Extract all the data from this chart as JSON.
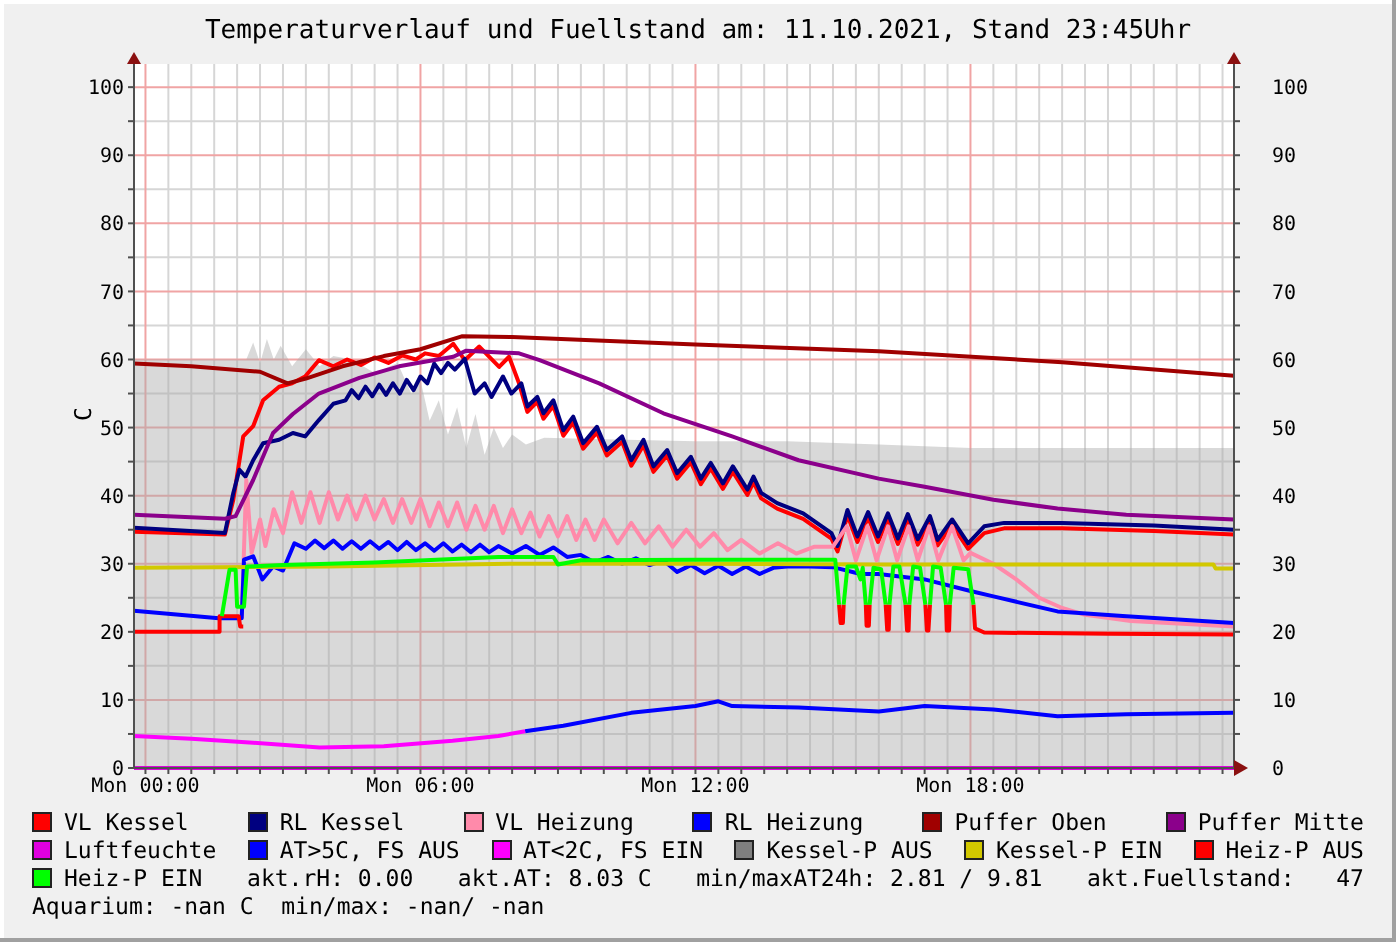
{
  "chart_data": {
    "type": "line",
    "title": "Temperaturverlauf und Fuellstand am: 11.10.2021, Stand 23:45Uhr",
    "ylabel": "C",
    "xlim": [
      "2021-10-10T23:45",
      "2021-10-11T23:45"
    ],
    "xticks": [
      {
        "value": "2021-10-11T00:00",
        "label": "Mon 00:00"
      },
      {
        "value": "2021-10-11T00:30",
        "label": null
      },
      {
        "value": "2021-10-11T01:00",
        "label": null
      },
      {
        "value": "2021-10-11T01:30",
        "label": null
      },
      {
        "value": "2021-10-11T02:00",
        "label": null
      },
      {
        "value": "2021-10-11T02:30",
        "label": null
      },
      {
        "value": "2021-10-11T03:00",
        "label": null
      },
      {
        "value": "2021-10-11T03:30",
        "label": null
      },
      {
        "value": "2021-10-11T04:00",
        "label": null
      },
      {
        "value": "2021-10-11T04:30",
        "label": null
      },
      {
        "value": "2021-10-11T05:00",
        "label": null
      },
      {
        "value": "2021-10-11T05:30",
        "label": null
      },
      {
        "value": "2021-10-11T06:00",
        "label": "Mon 06:00"
      },
      {
        "value": "2021-10-11T06:30",
        "label": null
      },
      {
        "value": "2021-10-11T07:00",
        "label": null
      },
      {
        "value": "2021-10-11T07:30",
        "label": null
      },
      {
        "value": "2021-10-11T08:00",
        "label": null
      },
      {
        "value": "2021-10-11T08:30",
        "label": null
      },
      {
        "value": "2021-10-11T09:00",
        "label": null
      },
      {
        "value": "2021-10-11T09:30",
        "label": null
      },
      {
        "value": "2021-10-11T10:00",
        "label": null
      },
      {
        "value": "2021-10-11T10:30",
        "label": null
      },
      {
        "value": "2021-10-11T11:00",
        "label": null
      },
      {
        "value": "2021-10-11T11:30",
        "label": null
      },
      {
        "value": "2021-10-11T12:00",
        "label": "Mon 12:00"
      },
      {
        "value": "2021-10-11T12:30",
        "label": null
      },
      {
        "value": "2021-10-11T13:00",
        "label": null
      },
      {
        "value": "2021-10-11T13:30",
        "label": null
      },
      {
        "value": "2021-10-11T14:00",
        "label": null
      },
      {
        "value": "2021-10-11T14:30",
        "label": null
      },
      {
        "value": "2021-10-11T15:00",
        "label": null
      },
      {
        "value": "2021-10-11T15:30",
        "label": null
      },
      {
        "value": "2021-10-11T16:00",
        "label": null
      },
      {
        "value": "2021-10-11T16:30",
        "label": null
      },
      {
        "value": "2021-10-11T17:00",
        "label": null
      },
      {
        "value": "2021-10-11T17:30",
        "label": null
      },
      {
        "value": "2021-10-11T18:00",
        "label": "Mon 18:00"
      },
      {
        "value": "2021-10-11T18:30",
        "label": null
      },
      {
        "value": "2021-10-11T19:00",
        "label": null
      },
      {
        "value": "2021-10-11T19:30",
        "label": null
      },
      {
        "value": "2021-10-11T20:00",
        "label": null
      },
      {
        "value": "2021-10-11T20:30",
        "label": null
      },
      {
        "value": "2021-10-11T21:00",
        "label": null
      },
      {
        "value": "2021-10-11T21:30",
        "label": null
      },
      {
        "value": "2021-10-11T22:00",
        "label": null
      },
      {
        "value": "2021-10-11T22:30",
        "label": null
      },
      {
        "value": "2021-10-11T23:00",
        "label": null
      },
      {
        "value": "2021-10-11T23:30",
        "label": null
      }
    ],
    "ylim": [
      0,
      103.4
    ],
    "yticks": [
      0,
      {
        "value": 5,
        "label": null
      },
      10,
      {
        "value": 15,
        "label": null
      },
      20,
      {
        "value": 25,
        "label": null
      },
      30,
      {
        "value": 35,
        "label": null
      },
      40,
      {
        "value": 45,
        "label": null
      },
      50,
      {
        "value": 55,
        "label": null
      },
      60,
      {
        "value": 65,
        "label": null
      },
      70,
      {
        "value": 75,
        "label": null
      },
      80,
      {
        "value": 85,
        "label": null
      },
      90,
      {
        "value": 95,
        "label": null
      },
      100
    ],
    "y2lim": [
      0,
      103.4
    ],
    "y2ticks": [
      0,
      {
        "value": 5,
        "label": null
      },
      10,
      {
        "value": 15,
        "label": null
      },
      20,
      {
        "value": 25,
        "label": null
      },
      30,
      {
        "value": 35,
        "label": null
      },
      40,
      {
        "value": 45,
        "label": null
      },
      50,
      {
        "value": 55,
        "label": null
      },
      60,
      {
        "value": 65,
        "label": null
      },
      70,
      {
        "value": 75,
        "label": null
      },
      80,
      {
        "value": 85,
        "label": null
      },
      90,
      {
        "value": 95,
        "label": null
      },
      100
    ],
    "grid": true,
    "legend": "bottom",
    "annotations": [
      "akt.rH: 0.00",
      "akt.AT: 8.03 C",
      "min/maxAT24h: 2.81 / 9.81",
      "akt.Fuellstand:   47",
      "Aquarium: -nan C  min/max: -nan/ -nan"
    ],
    "x": [
      "2021-10-10T23:45",
      "2021-10-11T01:37",
      "2021-10-11T01:37",
      "2021-10-11T01:40",
      "2021-10-11T01:50",
      "2021-10-11T01:58",
      "2021-10-11T02:00",
      "2021-10-11T02:02",
      "2021-10-11T02:04",
      "2021-10-11T02:08",
      "2021-10-11T02:09",
      "2021-10-11T02:13",
      "2021-10-11T03:00",
      "2021-10-11T05:00",
      "2021-10-11T07:42",
      "2021-10-11T08:54",
      "2021-10-11T09:00",
      "2021-10-11T09:30",
      "2021-10-11T12:00",
      "2021-10-11T15:03",
      "2021-10-11T15:08",
      "2021-10-11T15:10",
      "2021-10-11T15:13",
      "2021-10-11T15:14",
      "2021-10-11T15:19",
      "2021-10-11T15:30",
      "2021-10-11T15:36",
      "2021-10-11T15:39",
      "2021-10-11T15:43",
      "2021-10-11T15:44",
      "2021-10-11T15:47",
      "2021-10-11T15:48",
      "2021-10-11T15:53",
      "2021-10-11T16:03",
      "2021-10-11T16:09",
      "2021-10-11T16:11",
      "2021-10-11T16:13",
      "2021-10-11T16:14",
      "2021-10-11T16:19",
      "2021-10-11T16:27",
      "2021-10-11T16:35",
      "2021-10-11T16:37",
      "2021-10-11T16:39",
      "2021-10-11T16:40",
      "2021-10-11T16:45",
      "2021-10-11T16:54",
      "2021-10-11T17:01",
      "2021-10-11T17:03",
      "2021-10-11T17:05",
      "2021-10-11T17:07",
      "2021-10-11T17:11",
      "2021-10-11T17:21",
      "2021-10-11T17:28",
      "2021-10-11T17:29",
      "2021-10-11T17:32",
      "2021-10-11T17:33",
      "2021-10-11T17:38",
      "2021-10-11T17:57",
      "2021-10-11T18:04",
      "2021-10-11T18:06",
      "2021-10-11T18:18",
      "2021-10-11T21:00",
      "2021-10-11T23:45"
    ],
    "series": [
      {
        "type": "area",
        "color": "#d9d9d9",
        "x": [
          "2021-10-10T23:45",
          "2021-10-11T02:12",
          "2021-10-11T02:21",
          "2021-10-11T02:30",
          "2021-10-11T02:39",
          "2021-10-11T02:48",
          "2021-10-11T02:57",
          "2021-10-11T03:12",
          "2021-10-11T03:30",
          "2021-10-11T03:48",
          "2021-10-11T04:06",
          "2021-10-11T04:30",
          "2021-10-11T05:00",
          "2021-10-11T05:30",
          "2021-10-11T05:48",
          "2021-10-11T06:00",
          "2021-10-11T06:12",
          "2021-10-11T06:24",
          "2021-10-11T06:36",
          "2021-10-11T06:48",
          "2021-10-11T07:00",
          "2021-10-11T07:12",
          "2021-10-11T07:24",
          "2021-10-11T07:36",
          "2021-10-11T07:48",
          "2021-10-11T08:00",
          "2021-10-11T08:18",
          "2021-10-11T08:42",
          "2021-10-11T10:00",
          "2021-10-11T12:00",
          "2021-10-11T14:00",
          "2021-10-11T16:00",
          "2021-10-11T18:00",
          "2021-10-11T20:00",
          "2021-10-11T22:00",
          "2021-10-11T23:45"
        ],
        "values": [
          60,
          60,
          62.5,
          59.5,
          63,
          60,
          62,
          59,
          61.5,
          59,
          60.5,
          60,
          58,
          59.5,
          55,
          57,
          51,
          54,
          49,
          53,
          47,
          52,
          46,
          50,
          47,
          49,
          47.5,
          48.5,
          48.3,
          48,
          48,
          47.5,
          47,
          47,
          47,
          47
        ]
      },
      {
        "name": "VL Kessel",
        "color": "#ff0000",
        "x": [
          "2021-10-10T23:45",
          "2021-10-11T01:44",
          "2021-10-11T01:55",
          "2021-10-11T02:08",
          "2021-10-11T02:21",
          "2021-10-11T02:34",
          "2021-10-11T02:55",
          "2021-10-11T03:12",
          "2021-10-11T03:29",
          "2021-10-11T03:47",
          "2021-10-11T04:06",
          "2021-10-11T04:24",
          "2021-10-11T04:42",
          "2021-10-11T05:00",
          "2021-10-11T05:18",
          "2021-10-11T05:36",
          "2021-10-11T05:54",
          "2021-10-11T06:06",
          "2021-10-11T06:24",
          "2021-10-11T06:43",
          "2021-10-11T06:58",
          "2021-10-11T07:17",
          "2021-10-11T07:43",
          "2021-10-11T07:56",
          "2021-10-11T08:09",
          "2021-10-11T08:20",
          "2021-10-11T08:33",
          "2021-10-11T08:41",
          "2021-10-11T08:54",
          "2021-10-11T09:07",
          "2021-10-11T09:20",
          "2021-10-11T09:33",
          "2021-10-11T09:51",
          "2021-10-11T10:04",
          "2021-10-11T10:24",
          "2021-10-11T10:36",
          "2021-10-11T10:52",
          "2021-10-11T11:05",
          "2021-10-11T11:23",
          "2021-10-11T11:36",
          "2021-10-11T11:54",
          "2021-10-11T12:07",
          "2021-10-11T12:20",
          "2021-10-11T12:36",
          "2021-10-11T12:49",
          "2021-10-11T13:08",
          "2021-10-11T13:16",
          "2021-10-11T13:26",
          "2021-10-11T13:47",
          "2021-10-11T14:21",
          "2021-10-11T14:58",
          "2021-10-11T15:06",
          "2021-10-11T15:19",
          "2021-10-11T15:32",
          "2021-10-11T15:46",
          "2021-10-11T15:59",
          "2021-10-11T16:12",
          "2021-10-11T16:25",
          "2021-10-11T16:38",
          "2021-10-11T16:51",
          "2021-10-11T17:07",
          "2021-10-11T17:17",
          "2021-10-11T17:36",
          "2021-10-11T17:57",
          "2021-10-11T18:18",
          "2021-10-11T18:44",
          "2021-10-11T20:00",
          "2021-10-11T22:00",
          "2021-10-11T23:45"
        ],
        "values": [
          34.7,
          34.3,
          39.4,
          48.7,
          50.2,
          54,
          56,
          56.5,
          57.5,
          59.9,
          59,
          60,
          59.2,
          60.3,
          59.5,
          60.6,
          60,
          60.9,
          60.5,
          62.3,
          59.9,
          61.9,
          58.9,
          60.4,
          56.5,
          52.3,
          53.8,
          51.3,
          53.2,
          48.8,
          50.8,
          46.9,
          49.3,
          45.9,
          47.9,
          44.4,
          47.4,
          43.5,
          45.9,
          42.5,
          44.9,
          41.7,
          44,
          41,
          43.5,
          40.1,
          42,
          39.6,
          38.1,
          36.6,
          33.7,
          31.8,
          37.1,
          33.2,
          36.8,
          33.2,
          36.6,
          32.9,
          36.5,
          32.8,
          36.2,
          32.7,
          35.7,
          32.2,
          34.5,
          35.2,
          35.2,
          34.8,
          34.3
        ]
      },
      {
        "name": "RL Kessel",
        "color": "#000080",
        "x": [
          "2021-10-10T23:45",
          "2021-10-11T01:44",
          "2021-10-11T01:55",
          "2021-10-11T02:03",
          "2021-10-11T02:11",
          "2021-10-11T02:21",
          "2021-10-11T02:34",
          "2021-10-11T02:55",
          "2021-10-11T03:13",
          "2021-10-11T03:29",
          "2021-10-11T03:47",
          "2021-10-11T04:06",
          "2021-10-11T04:22",
          "2021-10-11T04:30",
          "2021-10-11T04:39",
          "2021-10-11T04:48",
          "2021-10-11T04:57",
          "2021-10-11T05:06",
          "2021-10-11T05:15",
          "2021-10-11T05:24",
          "2021-10-11T05:33",
          "2021-10-11T05:42",
          "2021-10-11T05:51",
          "2021-10-11T06:00",
          "2021-10-11T06:09",
          "2021-10-11T06:18",
          "2021-10-11T06:27",
          "2021-10-11T06:36",
          "2021-10-11T06:45",
          "2021-10-11T06:58",
          "2021-10-11T07:11",
          "2021-10-11T07:24",
          "2021-10-11T07:33",
          "2021-10-11T07:48",
          "2021-10-11T07:59",
          "2021-10-11T08:12",
          "2021-10-11T08:20",
          "2021-10-11T08:33",
          "2021-10-11T08:41",
          "2021-10-11T08:54",
          "2021-10-11T09:07",
          "2021-10-11T09:20",
          "2021-10-11T09:33",
          "2021-10-11T09:51",
          "2021-10-11T10:04",
          "2021-10-11T10:24",
          "2021-10-11T10:36",
          "2021-10-11T10:52",
          "2021-10-11T11:05",
          "2021-10-11T11:23",
          "2021-10-11T11:36",
          "2021-10-11T11:54",
          "2021-10-11T12:07",
          "2021-10-11T12:20",
          "2021-10-11T12:36",
          "2021-10-11T12:49",
          "2021-10-11T13:08",
          "2021-10-11T13:16",
          "2021-10-11T13:26",
          "2021-10-11T13:47",
          "2021-10-11T14:21",
          "2021-10-11T14:58",
          "2021-10-11T15:06",
          "2021-10-11T15:19",
          "2021-10-11T15:32",
          "2021-10-11T15:46",
          "2021-10-11T15:59",
          "2021-10-11T16:12",
          "2021-10-11T16:25",
          "2021-10-11T16:38",
          "2021-10-11T16:51",
          "2021-10-11T17:07",
          "2021-10-11T17:17",
          "2021-10-11T17:36",
          "2021-10-11T17:57",
          "2021-10-11T18:18",
          "2021-10-11T18:44",
          "2021-10-11T20:00",
          "2021-10-11T22:00",
          "2021-10-11T23:45"
        ],
        "values": [
          35.3,
          34.5,
          40.4,
          43.8,
          42.8,
          45.2,
          47.7,
          48.2,
          49.2,
          48.7,
          51.1,
          53.5,
          54,
          55.5,
          54.3,
          56,
          54.6,
          56.3,
          54.8,
          56.5,
          55,
          57,
          55.5,
          57.5,
          56.5,
          59.4,
          58,
          59.5,
          58.5,
          60.1,
          55,
          56.5,
          54.5,
          57.5,
          55,
          56.5,
          53.1,
          54.5,
          52.1,
          54,
          49.6,
          51.6,
          47.7,
          50.1,
          46.7,
          48.7,
          45.2,
          48.2,
          44.3,
          46.7,
          43.3,
          45.7,
          42.5,
          44.8,
          41.8,
          44.3,
          40.9,
          42.8,
          40.4,
          38.9,
          37.4,
          34.5,
          32.6,
          37.9,
          34,
          37.6,
          34,
          37.4,
          33.7,
          37.3,
          33.6,
          37,
          33.5,
          36.5,
          33,
          35.5,
          36,
          36,
          35.6,
          35
        ]
      },
      {
        "name": "VL Heizung",
        "color": "#ff8aaa",
        "x": [
          "2021-10-11T02:06",
          "2021-10-11T02:12",
          "2021-10-11T02:19",
          "2021-10-11T02:30",
          "2021-10-11T02:37",
          "2021-10-11T02:48",
          "2021-10-11T03:00",
          "2021-10-11T03:12",
          "2021-10-11T03:24",
          "2021-10-11T03:36",
          "2021-10-11T03:48",
          "2021-10-11T04:00",
          "2021-10-11T04:12",
          "2021-10-11T04:24",
          "2021-10-11T04:36",
          "2021-10-11T04:48",
          "2021-10-11T05:00",
          "2021-10-11T05:12",
          "2021-10-11T05:24",
          "2021-10-11T05:36",
          "2021-10-11T05:48",
          "2021-10-11T06:00",
          "2021-10-11T06:12",
          "2021-10-11T06:24",
          "2021-10-11T06:36",
          "2021-10-11T06:48",
          "2021-10-11T07:00",
          "2021-10-11T07:12",
          "2021-10-11T07:24",
          "2021-10-11T07:36",
          "2021-10-11T07:48",
          "2021-10-11T08:00",
          "2021-10-11T08:12",
          "2021-10-11T08:24",
          "2021-10-11T08:36",
          "2021-10-11T08:48",
          "2021-10-11T09:00",
          "2021-10-11T09:12",
          "2021-10-11T09:24",
          "2021-10-11T09:36",
          "2021-10-11T09:48",
          "2021-10-11T10:00",
          "2021-10-11T10:18",
          "2021-10-11T10:36",
          "2021-10-11T10:54",
          "2021-10-11T11:12",
          "2021-10-11T11:30",
          "2021-10-11T11:48",
          "2021-10-11T12:06",
          "2021-10-11T12:24",
          "2021-10-11T12:42",
          "2021-10-11T13:00",
          "2021-10-11T13:24",
          "2021-10-11T13:48",
          "2021-10-11T14:12",
          "2021-10-11T14:36",
          "2021-10-11T15:00",
          "2021-10-11T15:18",
          "2021-10-11T15:30",
          "2021-10-11T15:45",
          "2021-10-11T15:57",
          "2021-10-11T16:12",
          "2021-10-11T16:24",
          "2021-10-11T16:39",
          "2021-10-11T16:51",
          "2021-10-11T17:06",
          "2021-10-11T17:18",
          "2021-10-11T17:36",
          "2021-10-11T17:51",
          "2021-10-11T18:00",
          "2021-10-11T18:30",
          "2021-10-11T19:00",
          "2021-10-11T19:30",
          "2021-10-11T20:00",
          "2021-10-11T20:30",
          "2021-10-11T21:30",
          "2021-10-11T23:45"
        ],
        "values": [
          22,
          42.3,
          31.6,
          36.5,
          32.6,
          38,
          34.5,
          40.5,
          36,
          40.5,
          36,
          40.5,
          36.5,
          40,
          36.5,
          40,
          36.5,
          39.5,
          36,
          39.5,
          36,
          39.5,
          35.5,
          39,
          35.5,
          39,
          35,
          38.5,
          35,
          38.5,
          34.5,
          38,
          34.5,
          37.5,
          34,
          37,
          34,
          37,
          33.5,
          36.5,
          33.5,
          36.5,
          33,
          36,
          33,
          35.5,
          32.5,
          35,
          32.5,
          34.5,
          32,
          33.5,
          31.5,
          33,
          31.5,
          32.5,
          32.5,
          35.5,
          30.5,
          35.5,
          30.5,
          35.5,
          30.5,
          35.5,
          30.5,
          35.5,
          30.5,
          35.5,
          30.5,
          31.6,
          30,
          27.7,
          25,
          23.5,
          22.5,
          21.6,
          20.8
        ]
      },
      {
        "name": "RL Heizung",
        "color": "#0000ff",
        "x": [
          "2021-10-10T23:45",
          "2021-10-11T01:36",
          "2021-10-11T02:06",
          "2021-10-11T02:09",
          "2021-10-11T02:21",
          "2021-10-11T02:33",
          "2021-10-11T02:47",
          "2021-10-11T03:00",
          "2021-10-11T03:15",
          "2021-10-11T03:30",
          "2021-10-11T03:42",
          "2021-10-11T03:54",
          "2021-10-11T04:06",
          "2021-10-11T04:18",
          "2021-10-11T04:30",
          "2021-10-11T04:42",
          "2021-10-11T04:54",
          "2021-10-11T05:06",
          "2021-10-11T05:18",
          "2021-10-11T05:30",
          "2021-10-11T05:42",
          "2021-10-11T05:54",
          "2021-10-11T06:06",
          "2021-10-11T06:18",
          "2021-10-11T06:30",
          "2021-10-11T06:42",
          "2021-10-11T06:54",
          "2021-10-11T07:06",
          "2021-10-11T07:18",
          "2021-10-11T07:30",
          "2021-10-11T07:42",
          "2021-10-11T08:00",
          "2021-10-11T08:18",
          "2021-10-11T08:36",
          "2021-10-11T08:54",
          "2021-10-11T09:12",
          "2021-10-11T09:30",
          "2021-10-11T09:48",
          "2021-10-11T10:06",
          "2021-10-11T10:24",
          "2021-10-11T10:42",
          "2021-10-11T11:00",
          "2021-10-11T11:18",
          "2021-10-11T11:36",
          "2021-10-11T11:54",
          "2021-10-11T12:12",
          "2021-10-11T12:30",
          "2021-10-11T12:48",
          "2021-10-11T13:06",
          "2021-10-11T13:24",
          "2021-10-11T13:42",
          "2021-10-11T14:00",
          "2021-10-11T14:30",
          "2021-10-11T15:00",
          "2021-10-11T15:36",
          "2021-10-11T16:00",
          "2021-10-11T17:00",
          "2021-10-11T18:00",
          "2021-10-11T18:30",
          "2021-10-11T19:54",
          "2021-10-11T21:24",
          "2021-10-11T23:45"
        ],
        "values": [
          23.1,
          22,
          22,
          30.6,
          31.1,
          27.7,
          29.6,
          29,
          33,
          32.2,
          33.4,
          32.3,
          33.4,
          32.2,
          33.3,
          32.2,
          33.3,
          32.2,
          33.2,
          32,
          33.2,
          32,
          33,
          31.9,
          33,
          31.8,
          32.8,
          31.7,
          32.8,
          31.7,
          32.6,
          31.5,
          32.6,
          31.3,
          32.4,
          31,
          31.3,
          30.2,
          31,
          30,
          30.8,
          29.8,
          30.5,
          28.8,
          29.8,
          28.6,
          29.7,
          28.5,
          29.6,
          28.5,
          29.4,
          29.6,
          29.6,
          29.5,
          28.5,
          28.5,
          27.7,
          26,
          25.2,
          23,
          22.3,
          21.3
        ]
      },
      {
        "name": "Puffer Oben",
        "color": "#a00000",
        "x": [
          "2021-10-10T23:45",
          "2021-10-11T01:00",
          "2021-10-11T02:30",
          "2021-10-11T03:06",
          "2021-10-11T03:30",
          "2021-10-11T04:18",
          "2021-10-11T05:12",
          "2021-10-11T06:00",
          "2021-10-11T06:54",
          "2021-10-11T08:00",
          "2021-10-11T12:00",
          "2021-10-11T16:00",
          "2021-10-11T20:00",
          "2021-10-11T23:45"
        ],
        "values": [
          59.4,
          59,
          58.2,
          56.5,
          57.2,
          59,
          60.5,
          61.5,
          63.4,
          63.3,
          62.2,
          61.2,
          59.6,
          57.6
        ]
      },
      {
        "name": "Puffer Mitte",
        "color": "#8b008b",
        "x": [
          "2021-10-10T23:45",
          "2021-10-11T01:44",
          "2021-10-11T01:58",
          "2021-10-11T02:21",
          "2021-10-11T02:47",
          "2021-10-11T03:13",
          "2021-10-11T03:47",
          "2021-10-11T04:40",
          "2021-10-11T05:32",
          "2021-10-11T06:43",
          "2021-10-11T07:00",
          "2021-10-11T08:09",
          "2021-10-11T08:36",
          "2021-10-11T09:54",
          "2021-10-11T11:18",
          "2021-10-11T12:48",
          "2021-10-11T14:15",
          "2021-10-11T16:00",
          "2021-10-11T17:00",
          "2021-10-11T18:30",
          "2021-10-11T19:54",
          "2021-10-11T21:24",
          "2021-10-11T23:45"
        ],
        "values": [
          37.2,
          36.6,
          37,
          42.3,
          49.2,
          52,
          55,
          57.3,
          59,
          60.4,
          61.3,
          60.9,
          59.9,
          56.5,
          52.1,
          48.7,
          45.2,
          42.5,
          41.3,
          39.4,
          38.1,
          37.2,
          36.5
        ]
      },
      {
        "name": "Luftfeuchte",
        "color": "#e000e0",
        "x": [
          "2021-10-10T23:45",
          "2021-10-11T23:45"
        ],
        "values": [
          0,
          0
        ]
      },
      {
        "name": "AT>5C, FS AUS",
        "color": "#0000ff",
        "x": [
          "2021-10-11T08:17",
          "2021-10-11T09:07",
          "2021-10-11T10:36",
          "2021-10-11T12:00",
          "2021-10-11T12:30",
          "2021-10-11T12:48",
          "2021-10-11T14:15",
          "2021-10-11T16:00",
          "2021-10-11T17:00",
          "2021-10-11T18:30",
          "2021-10-11T19:54",
          "2021-10-11T21:24",
          "2021-10-11T23:45"
        ],
        "values": [
          5.4,
          6.2,
          8.1,
          9.1,
          9.8,
          9.1,
          8.9,
          8.3,
          9.1,
          8.6,
          7.6,
          7.9,
          8.1
        ]
      },
      {
        "name": "AT<2C, FS EIN",
        "color": "#ff00ff",
        "x": [
          "2021-10-10T23:45",
          "2021-10-11T01:00",
          "2021-10-11T02:21",
          "2021-10-11T03:48",
          "2021-10-11T05:12",
          "2021-10-11T06:42",
          "2021-10-11T07:42",
          "2021-10-11T08:17"
        ],
        "values": [
          4.7,
          4.3,
          3.7,
          3.0,
          3.2,
          4.0,
          4.7,
          5.4
        ]
      },
      {
        "name": "Kessel-P AUS",
        "color": "#808080",
        "values": [
          null,
          null,
          null,
          null,
          null,
          null,
          null,
          null,
          null,
          null,
          null,
          null,
          null,
          null,
          null,
          null,
          null,
          null,
          null,
          null,
          null,
          null,
          null,
          null,
          null,
          null,
          null,
          null,
          null,
          null,
          null,
          null,
          null,
          null,
          null,
          null,
          null,
          null,
          null,
          null,
          null,
          null,
          null,
          null,
          null,
          null,
          null,
          null,
          null,
          null,
          null,
          null,
          null,
          null,
          null,
          null,
          null,
          null,
          null,
          null,
          null,
          null,
          null
        ]
      },
      {
        "name": "Kessel-P EIN",
        "color": "#d2c800",
        "x": [
          "2021-10-10T23:45",
          "2021-10-11T04:00",
          "2021-10-11T08:00",
          "2021-10-11T12:00",
          "2021-10-11T16:00",
          "2021-10-11T20:00",
          "2021-10-11T23:18",
          "2021-10-11T23:21",
          "2021-10-11T23:45"
        ],
        "values": [
          29.4,
          29.6,
          30,
          30,
          29.9,
          29.9,
          29.9,
          29.3,
          29.3
        ]
      },
      {
        "name": "Heiz-P AUS",
        "color": "#ff0000",
        "values": [
          20,
          20,
          22.3,
          22.3,
          22.3,
          22.3,
          22.3,
          22.3,
          20.8,
          20.8,
          null,
          null,
          null,
          null,
          null,
          null,
          null,
          null,
          null,
          null,
          24,
          21.3,
          21.3,
          24,
          null,
          null,
          null,
          null,
          24,
          20.9,
          20.9,
          24,
          null,
          null,
          24,
          20.3,
          20.3,
          24,
          null,
          null,
          24,
          20.2,
          20.2,
          24,
          null,
          null,
          24,
          20.2,
          20.2,
          24,
          null,
          null,
          24,
          20.2,
          20.2,
          24,
          null,
          null,
          24,
          20.5,
          19.9,
          19.7,
          19.6
        ]
      },
      {
        "name": "Heiz-P EIN",
        "color": "#00ff00",
        "values": [
          null,
          null,
          null,
          22.3,
          29.1,
          29.1,
          23.7,
          23.7,
          23.7,
          23.7,
          23.7,
          29.6,
          29.8,
          30.2,
          31,
          31,
          29.9,
          30.5,
          30.6,
          30.6,
          24,
          null,
          null,
          24,
          29.6,
          29.6,
          27.7,
          29.4,
          24,
          null,
          null,
          24,
          29.4,
          29.2,
          24,
          null,
          null,
          24,
          29.6,
          29.6,
          24,
          null,
          null,
          24,
          29.6,
          29.4,
          24,
          null,
          null,
          24,
          29.6,
          29.4,
          24,
          null,
          null,
          24,
          29.4,
          29.2,
          24,
          null,
          null,
          null,
          null
        ]
      }
    ]
  }
}
